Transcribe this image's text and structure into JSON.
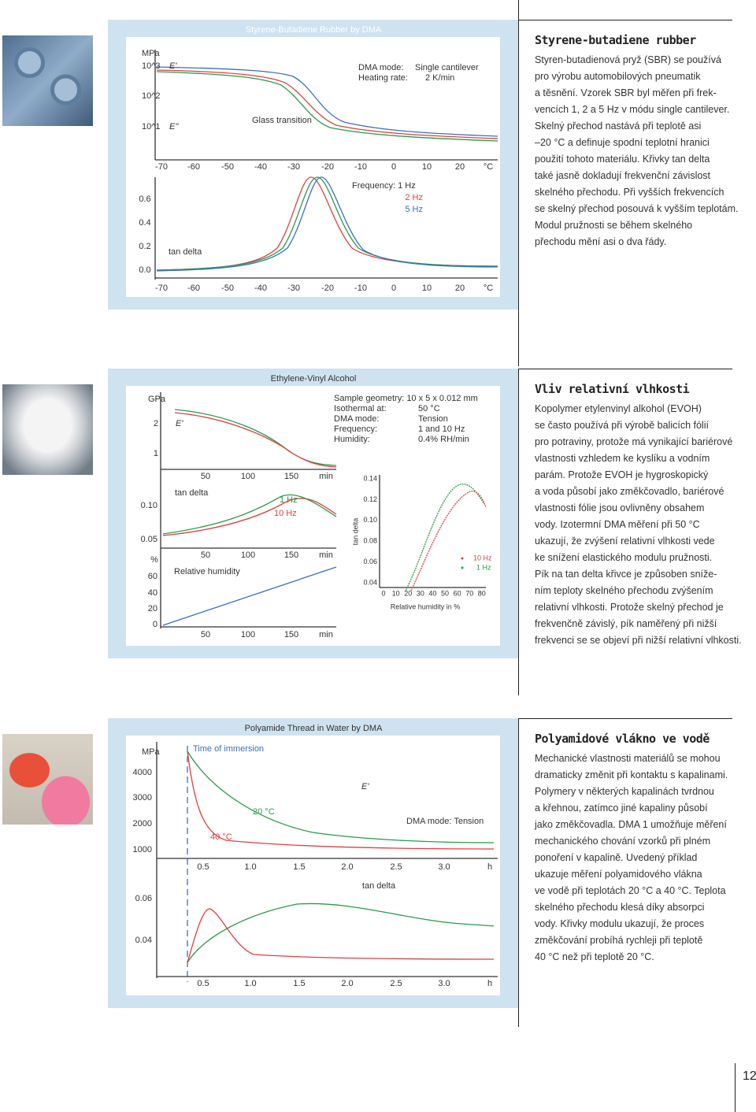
{
  "sections": [
    {
      "title": "Styrene-butadiene rubber",
      "lines": [
        "Styren-butadienová pryž (SBR) se používá",
        "pro výrobu automobilových pneumatik",
        "a těsnění. Vzorek SBR byl měřen při frek-",
        "vencích 1, 2 a 5 Hz v módu single cantilever.",
        "Skelný přechod nastává při teplotě asi",
        "–20 °C a definuje spodní teplotní hranici",
        "použití tohoto materiálu. Křivky tan delta",
        "také jasně dokladují frekvenční závislost",
        "skelného přechodu. Při vyšších frekvencích",
        "se skelný přechod posouvá k vyšším teplotám.",
        "Modul pružnosti se během skelného",
        "přechodu mění asi o dva řády."
      ],
      "figure": {
        "title": "Styrene-Butadiene Rubber by DMA",
        "unit": "MPa",
        "moduli": [
          "10^3",
          "10^2",
          "10^1"
        ],
        "e1": "E'",
        "e2": "E''",
        "glass": "Glass transition",
        "mode_label": "DMA mode:",
        "mode": "Single cantilever",
        "rate_label": "Heating rate:",
        "rate": "2 K/min",
        "xticks": [
          "-70",
          "-60",
          "-50",
          "-40",
          "-30",
          "-20",
          "-10",
          "0",
          "10",
          "20",
          "°C"
        ],
        "freq": [
          "Frequency: 1 Hz",
          "2 Hz",
          "5 Hz"
        ],
        "tan_ticks": [
          "0.6",
          "0.4",
          "0.2",
          "0.0"
        ],
        "tan_label": "tan delta"
      }
    },
    {
      "title": "Vliv relativní vlhkosti",
      "lines": [
        "Kopolymer etylenvinyl alkohol (EVOH)",
        "se často používá při výrobě balicích fólií",
        "pro potraviny, protože má vynikající bariérové",
        "vlastnosti vzhledem ke kyslíku a vodním",
        "parám. Protože EVOH je hygroskopický",
        "a voda působí jako změkčovadlo, bariérové",
        "vlastnosti fólie jsou ovlivněny obsahem",
        "vody. Izotermní DMA měření při 50 °C",
        "ukazují, že zvýšení relativní vlhkosti vede",
        "ke snížení elastického modulu pružnosti.",
        "Pík na tan delta křivce je způsoben sníže-",
        "ním teploty skelného přechodu zvýšením",
        "relativní vlhkosti. Protože skelný přechod je",
        "frekvenčně závislý, pík naměřený při nižší",
        "frekvenci se se objeví při nižší relativní vlhkosti."
      ],
      "figure": {
        "title": "Ethylene-Vinyl Alcohol",
        "unit": "GPa",
        "moduli": [
          "2",
          "1"
        ],
        "e1": "E'",
        "params": [
          [
            "Sample geometry: 10 x 5 x 0.012 mm",
            ""
          ],
          [
            "Isothermal at:",
            "50 °C"
          ],
          [
            "DMA mode:",
            "Tension"
          ],
          [
            "Frequency:",
            "1 and 10 Hz"
          ],
          [
            "Humidity:",
            "0.4% RH/min"
          ]
        ],
        "time_ticks": [
          "50",
          "100",
          "150",
          "min"
        ],
        "tan_label": "tan delta",
        "tan_ticks": [
          "0.10",
          "0.05"
        ],
        "freq": [
          "1 Hz",
          "10 Hz"
        ],
        "pct": "%",
        "rh_label": "Relative humidity",
        "rh_ticks": [
          "60",
          "40",
          "20",
          "0"
        ],
        "inset_yticks": [
          "0.14",
          "0.12",
          "0.10",
          "0.08",
          "0.06",
          "0.04"
        ],
        "inset_xticks": [
          "0",
          "10",
          "20",
          "30",
          "40",
          "50",
          "60",
          "70",
          "80"
        ],
        "inset_xlabel": "Relative humidity in %",
        "inset_legend": [
          "10 Hz",
          "1 Hz"
        ]
      }
    },
    {
      "title": "Polyamidové vlákno ve vodě",
      "lines": [
        "Mechanické vlastnosti materiálů se mohou",
        "dramaticky změnit při kontaktu s kapalinami.",
        "Polymery v některých kapalinách tvrdnou",
        "a křehnou, zatímco jiné kapaliny působí",
        "jako změkčovadla. DMA 1 umožňuje měření",
        "mechanického chování vzorků při plném",
        "ponoření v kapalině. Uvedený příklad",
        "ukazuje měření polyamidového vlákna",
        "ve vodě při teplotách 20 °C a 40 °C. Teplota",
        "skelného přechodu klesá díky absorpci",
        "vody. Křivky modulu ukazují, že proces",
        "změkčování probíhá rychleji při teplotě",
        "40 °C než při teplotě 20 °C."
      ],
      "figure": {
        "title": "Polyamide Thread in Water by DMA",
        "unit": "MPa",
        "moduli": [
          "4000",
          "3000",
          "2000",
          "1000"
        ],
        "immersion": "Time of immersion",
        "e1": "E'",
        "t20": "20 °C",
        "t40": "40 °C",
        "mode": "DMA mode: Tension",
        "xticks": [
          "0.5",
          "1.0",
          "1.5",
          "2.0",
          "2.5",
          "3.0",
          "h"
        ],
        "tan_label": "tan delta",
        "tan_ticks": [
          "0.06",
          "0.04"
        ]
      }
    }
  ],
  "page_number": "12"
}
